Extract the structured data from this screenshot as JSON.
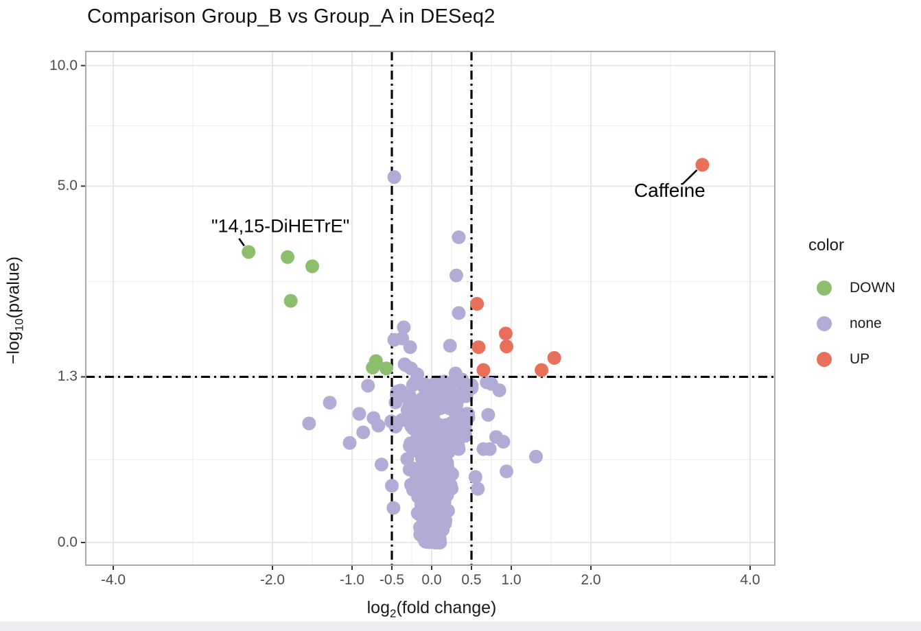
{
  "chart_data": {
    "type": "scatter",
    "title": "Comparison Group_B vs Group_A in DESeq2",
    "x_axis": {
      "label_prefix": "log",
      "label_sub": "2",
      "label_rest": "(fold change)",
      "scale": "linear",
      "range": [
        -4.35,
        4.31
      ],
      "breaks": [
        -4,
        -2,
        -1,
        -0.5,
        0,
        0.5,
        1,
        2,
        4
      ],
      "tick_labels": [
        "-4.0",
        "-2.0",
        "-1.0",
        "-0.5",
        "0.0",
        "0.5",
        "1.0",
        "2.0",
        "4.0"
      ],
      "minor_breaks": [
        -3,
        -1.5,
        -0.75,
        -0.25,
        0.25,
        0.75,
        1.5,
        3
      ]
    },
    "y_axis": {
      "label_prefix": "−log",
      "label_sub": "10",
      "label_rest": "(pvalue)",
      "scale": "log1p-transformed -log10(pvalue)",
      "range": [
        -0.11,
        10.8
      ],
      "breaks": [
        0,
        1.3,
        5,
        10
      ],
      "tick_labels": [
        "0.0",
        "1.3",
        "5.0",
        "10.0"
      ]
    },
    "thresholds": {
      "vlines": [
        -0.5,
        0.5
      ],
      "hline": 1.3,
      "style": "dash-dot",
      "color": "#000000"
    },
    "grid": {
      "major_color": "#e4e4e4",
      "minor_color": "#f1f1f1",
      "panel_border": "#a9a9a9",
      "background": "#ffffff"
    },
    "legend": {
      "title": "color",
      "position": "right",
      "items": [
        {
          "label": "DOWN",
          "color": "#8cbe6e"
        },
        {
          "label": "none",
          "color": "#b1acd6"
        },
        {
          "label": "UP",
          "color": "#e8705a"
        }
      ]
    },
    "point_radius_px": 10,
    "series": [
      {
        "name": "DOWN",
        "color": "#8cbe6e",
        "points": [
          [
            -2.3,
            3.31
          ],
          [
            -1.81,
            3.2
          ],
          [
            -1.5,
            3.01
          ],
          [
            -1.77,
            2.37
          ],
          [
            -0.7,
            1.49
          ],
          [
            -0.74,
            1.41
          ],
          [
            -0.57,
            1.4
          ]
        ]
      },
      {
        "name": "UP",
        "color": "#e8705a",
        "points": [
          [
            3.4,
            5.68
          ],
          [
            0.57,
            2.32
          ],
          [
            0.93,
            1.86
          ],
          [
            0.94,
            1.68
          ],
          [
            0.59,
            1.67
          ],
          [
            0.65,
            1.38
          ],
          [
            1.38,
            1.38
          ],
          [
            1.54,
            1.53
          ]
        ]
      },
      {
        "name": "none",
        "color": "#b1acd6",
        "points": [
          [
            -0.47,
            5.28
          ],
          [
            0.34,
            3.64
          ],
          [
            0.31,
            2.83
          ],
          [
            0.34,
            2.17
          ],
          [
            -0.35,
            1.95
          ],
          [
            -0.47,
            1.77
          ],
          [
            -0.37,
            1.79
          ],
          [
            -0.27,
            1.67
          ],
          [
            0.23,
            1.69
          ],
          [
            -0.34,
            1.45
          ],
          [
            -0.26,
            1.4
          ],
          [
            -0.18,
            1.33
          ],
          [
            0.3,
            1.34
          ],
          [
            -0.33,
            1.44
          ],
          [
            -0.8,
            1.2
          ],
          [
            -1.28,
            1.02
          ],
          [
            -0.91,
            0.91
          ],
          [
            -1.54,
            0.82
          ],
          [
            -1.03,
            0.65
          ],
          [
            -0.86,
            0.74
          ],
          [
            -0.73,
            0.87
          ],
          [
            -0.67,
            0.8
          ],
          [
            -0.63,
            0.48
          ],
          [
            -0.5,
            0.33
          ],
          [
            -0.48,
            0.19
          ],
          [
            0.75,
            1.22
          ],
          [
            0.85,
            1.15
          ],
          [
            0.71,
            0.9
          ],
          [
            0.81,
            0.7
          ],
          [
            0.9,
            0.66
          ],
          [
            0.65,
            0.6
          ],
          [
            0.73,
            0.6
          ],
          [
            1.31,
            0.54
          ],
          [
            0.94,
            0.43
          ],
          [
            0.55,
            0.39
          ],
          [
            0.58,
            0.31
          ]
        ]
      }
    ],
    "background_cluster": {
      "name": "none",
      "note": "dense unlabeled funnel of non-significant points centered at x=0, apex at (0,0)",
      "count": 420,
      "seed": 42,
      "y_max": 1.27,
      "y_bias_exponent": 1.6,
      "half_width_base": 0.14,
      "half_width_slope": 0.62
    },
    "annotations": [
      {
        "text": "\"14,15-DiHETrE\"",
        "point": {
          "x": -2.3,
          "y": 3.31
        },
        "label_at": {
          "x": -1.9,
          "y": 3.91
        },
        "leader_from": {
          "x": -2.42,
          "y": 3.61
        }
      },
      {
        "text": "Caffeine",
        "point": {
          "x": 3.4,
          "y": 5.68
        },
        "label_at": {
          "x": 2.99,
          "y": 4.86
        },
        "leader_from": {
          "x": 3.15,
          "y": 5.06
        }
      }
    ]
  }
}
